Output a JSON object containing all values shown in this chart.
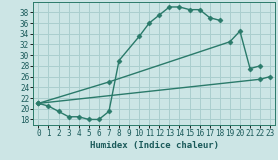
{
  "bg_color": "#cce5e5",
  "grid_color": "#aacece",
  "line_color": "#2a7a6a",
  "line_width": 1.0,
  "marker": "D",
  "marker_size": 2.5,
  "xlabel": "Humidex (Indice chaleur)",
  "xlim": [
    -0.5,
    23.5
  ],
  "ylim": [
    17.0,
    40.0
  ],
  "yticks": [
    18,
    20,
    22,
    24,
    26,
    28,
    30,
    32,
    34,
    36,
    38
  ],
  "xticks": [
    0,
    1,
    2,
    3,
    4,
    5,
    6,
    7,
    8,
    9,
    10,
    11,
    12,
    13,
    14,
    15,
    16,
    17,
    18,
    19,
    20,
    21,
    22,
    23
  ],
  "line1_x": [
    0,
    1,
    2,
    3,
    4,
    5,
    6,
    7,
    8,
    10,
    11,
    12,
    13,
    14,
    15,
    16,
    17,
    18
  ],
  "line1_y": [
    21.0,
    20.5,
    19.5,
    18.5,
    18.5,
    18.0,
    18.0,
    19.5,
    29.0,
    33.5,
    36.0,
    37.5,
    39.0,
    39.0,
    38.5,
    38.5,
    37.0,
    36.5
  ],
  "line2_x": [
    0,
    7,
    19,
    20,
    21,
    22
  ],
  "line2_y": [
    21.0,
    25.0,
    32.5,
    34.5,
    27.5,
    28.0
  ],
  "line3_x": [
    0,
    22,
    23
  ],
  "line3_y": [
    21.0,
    25.5,
    26.0
  ]
}
